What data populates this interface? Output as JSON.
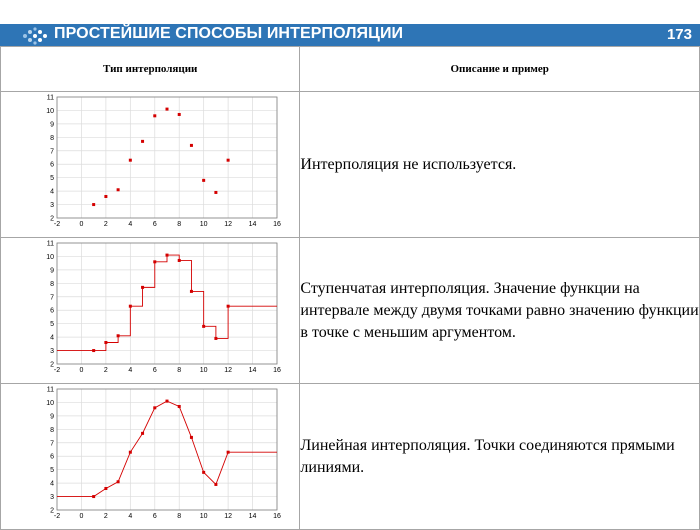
{
  "header": {
    "title": "ПРОСТЕЙШИЕ СПОСОБЫ ИНТЕРПОЛЯЦИИ",
    "page_number": "173",
    "accent_color": "#2e75b6"
  },
  "table": {
    "col1_header": "Тип интерполяции",
    "col2_header": "Описание и пример",
    "rows": [
      {
        "description": "Интерполяция не используется."
      },
      {
        "description": "Ступенчатая интерполяция. Значение функции на интервале между двумя точками равно значению функции в точке с меньшим аргументом."
      },
      {
        "description": "Линейная интерполяция. Точки соединяются прямыми линиями."
      }
    ]
  },
  "chart_data": [
    {
      "type": "scatter",
      "mode": "points",
      "x": [
        1,
        2,
        3,
        4,
        5,
        6,
        7,
        8,
        9,
        10,
        11,
        12
      ],
      "y": [
        3,
        3.6,
        4.1,
        6.3,
        7.7,
        9.6,
        10.1,
        9.7,
        7.4,
        4.8,
        3.9,
        6.3
      ],
      "xlim": [
        -2,
        16
      ],
      "ylim": [
        2,
        11
      ],
      "xticks": [
        "-2",
        "0",
        "2",
        "4",
        "6",
        "8",
        "10",
        "12",
        "14",
        "16"
      ],
      "yticks": [
        "2",
        "3",
        "4",
        "5",
        "6",
        "7",
        "8",
        "9",
        "10",
        "11"
      ],
      "grid": true,
      "color": "#d40000"
    },
    {
      "type": "line",
      "mode": "step",
      "x": [
        1,
        2,
        3,
        4,
        5,
        6,
        7,
        8,
        9,
        10,
        11,
        12
      ],
      "y": [
        3,
        3.6,
        4.1,
        6.3,
        7.7,
        9.6,
        10.1,
        9.7,
        7.4,
        4.8,
        3.9,
        6.3
      ],
      "xlim": [
        -2,
        16
      ],
      "ylim": [
        2,
        11
      ],
      "xticks": [
        "-2",
        "0",
        "2",
        "4",
        "6",
        "8",
        "10",
        "12",
        "14",
        "16"
      ],
      "yticks": [
        "2",
        "3",
        "4",
        "5",
        "6",
        "7",
        "8",
        "9",
        "10",
        "11"
      ],
      "grid": true,
      "color": "#d40000"
    },
    {
      "type": "line",
      "mode": "linear",
      "x": [
        1,
        2,
        3,
        4,
        5,
        6,
        7,
        8,
        9,
        10,
        11,
        12
      ],
      "y": [
        3,
        3.6,
        4.1,
        6.3,
        7.7,
        9.6,
        10.1,
        9.7,
        7.4,
        4.8,
        3.9,
        6.3
      ],
      "xlim": [
        -2,
        16
      ],
      "ylim": [
        2,
        11
      ],
      "xticks": [
        "-2",
        "0",
        "2",
        "4",
        "6",
        "8",
        "10",
        "12",
        "14",
        "16"
      ],
      "yticks": [
        "2",
        "3",
        "4",
        "5",
        "6",
        "7",
        "8",
        "9",
        "10",
        "11"
      ],
      "grid": true,
      "color": "#d40000"
    }
  ]
}
